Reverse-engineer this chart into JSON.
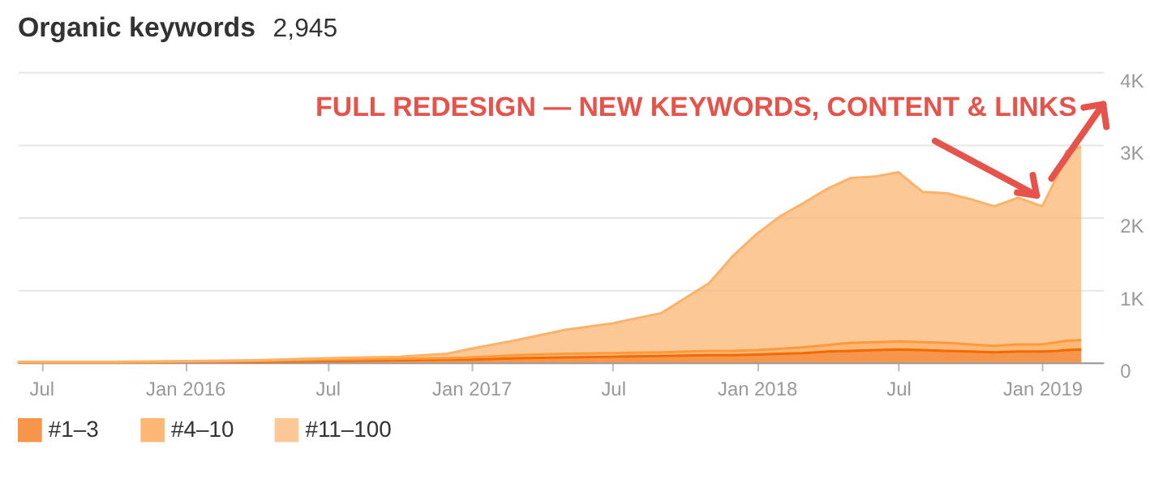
{
  "chart_data": {
    "type": "area",
    "stacked": true,
    "title": "Organic keywords",
    "subtitle": "2,945",
    "annotations": [
      {
        "text": "FULL REDESIGN — NEW KEYWORDS, CONTENT & LINKS",
        "x": "2018-12-25",
        "y": 2300
      }
    ],
    "x": [
      "2015-06-01",
      "2015-10-01",
      "2016-01-01",
      "2016-04-01",
      "2016-07-01",
      "2016-10-01",
      "2016-12-01",
      "2017-01-01",
      "2017-03-01",
      "2017-05-01",
      "2017-07-01",
      "2017-09-01",
      "2017-11-01",
      "2017-12-01",
      "2018-01-01",
      "2018-02-01",
      "2018-03-01",
      "2018-04-01",
      "2018-05-01",
      "2018-06-01",
      "2018-07-01",
      "2018-08-01",
      "2018-09-01",
      "2018-10-01",
      "2018-11-01",
      "2018-12-01",
      "2019-01-01",
      "2019-01-20",
      "2019-02-01",
      "2019-02-20"
    ],
    "series": [
      {
        "name": "#1–3",
        "color": "#f26a00",
        "values": [
          0,
          0,
          10,
          10,
          20,
          30,
          40,
          40,
          60,
          70,
          80,
          90,
          100,
          100,
          110,
          120,
          130,
          150,
          160,
          170,
          180,
          170,
          160,
          150,
          140,
          150,
          150,
          160,
          170,
          180
        ]
      },
      {
        "name": "#4–10",
        "color": "#ff9a3c",
        "values": [
          0,
          0,
          0,
          10,
          20,
          20,
          20,
          30,
          40,
          50,
          50,
          50,
          60,
          60,
          60,
          70,
          80,
          90,
          110,
          110,
          110,
          110,
          110,
          100,
          90,
          100,
          100,
          120,
          130,
          130
        ]
      },
      {
        "name": "#11–100",
        "color": "#fbb26a",
        "values": [
          10,
          10,
          10,
          10,
          20,
          30,
          60,
          120,
          210,
          330,
          410,
          540,
          930,
          1300,
          1600,
          1830,
          1980,
          2150,
          2270,
          2280,
          2330,
          2070,
          2060,
          2000,
          1920,
          2020,
          1900,
          2280,
          2610,
          2660
        ]
      }
    ],
    "xlim": [
      "2015-06-01",
      "2019-03-20"
    ],
    "xticks": [
      {
        "value": "2015-07-01",
        "label": "Jul"
      },
      {
        "value": "2016-01-01",
        "label": "Jan 2016"
      },
      {
        "value": "2016-07-01",
        "label": "Jul"
      },
      {
        "value": "2017-01-01",
        "label": "Jan 2017"
      },
      {
        "value": "2017-07-01",
        "label": "Jul"
      },
      {
        "value": "2018-01-01",
        "label": "Jan 2018"
      },
      {
        "value": "2018-07-01",
        "label": "Jul"
      },
      {
        "value": "2019-01-01",
        "label": "Jan 2019"
      }
    ],
    "ylim": [
      0,
      4000
    ],
    "yticks": [
      0,
      {
        "value": 1000,
        "label": "1K"
      },
      {
        "value": 2000,
        "label": "2K"
      },
      {
        "value": 3000,
        "label": "3K"
      },
      {
        "value": 4000,
        "label": "4K"
      }
    ],
    "grid": "y",
    "legend": "bottom left"
  }
}
